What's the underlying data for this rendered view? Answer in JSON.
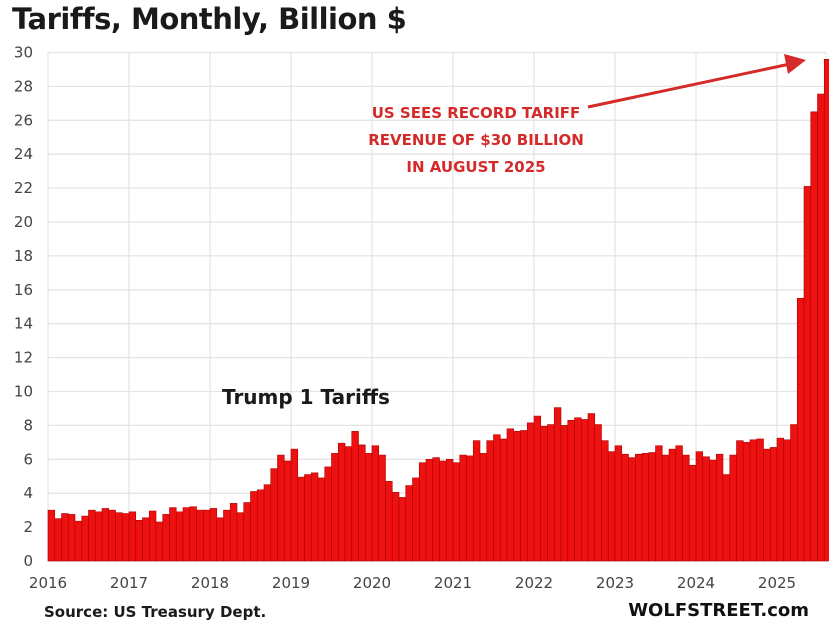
{
  "chart_data": {
    "type": "bar",
    "title": "Tariffs, Monthly, Billion $",
    "xlabel": "",
    "ylabel": "",
    "ylim": [
      0,
      30
    ],
    "yticks": [
      0,
      2,
      4,
      6,
      8,
      10,
      12,
      14,
      16,
      18,
      20,
      22,
      24,
      26,
      28,
      30
    ],
    "xticks": [
      "2016",
      "2017",
      "2018",
      "2019",
      "2020",
      "2021",
      "2022",
      "2023",
      "2024",
      "2025"
    ],
    "grid": true,
    "bar_color": "#ee1111",
    "start": "2016-01",
    "end": "2025-08",
    "frequency": "monthly",
    "series": [
      {
        "name": "Tariff revenue",
        "values": [
          3.0,
          2.5,
          2.8,
          2.75,
          2.35,
          2.65,
          3.0,
          2.9,
          3.1,
          3.0,
          2.85,
          2.8,
          2.9,
          2.4,
          2.55,
          2.95,
          2.3,
          2.75,
          3.15,
          2.9,
          3.15,
          3.2,
          3.0,
          3.0,
          3.1,
          2.55,
          3.0,
          3.4,
          2.85,
          3.45,
          4.1,
          4.2,
          4.5,
          5.45,
          6.25,
          5.9,
          6.6,
          4.95,
          5.1,
          5.2,
          4.9,
          5.55,
          6.35,
          6.95,
          6.75,
          7.65,
          6.85,
          6.35,
          6.8,
          6.25,
          4.7,
          4.05,
          3.75,
          4.45,
          4.9,
          5.8,
          6.0,
          6.1,
          5.9,
          6.0,
          5.8,
          6.25,
          6.2,
          7.1,
          6.35,
          7.1,
          7.45,
          7.2,
          7.8,
          7.65,
          7.7,
          8.15,
          8.55,
          7.95,
          8.05,
          9.05,
          8.0,
          8.3,
          8.45,
          8.35,
          8.7,
          8.05,
          7.1,
          6.45,
          6.8,
          6.3,
          6.1,
          6.3,
          6.35,
          6.4,
          6.8,
          6.25,
          6.6,
          6.8,
          6.25,
          5.65,
          6.45,
          6.15,
          5.95,
          6.3,
          5.1,
          6.25,
          7.1,
          7.0,
          7.15,
          7.2,
          6.6,
          6.7,
          7.25,
          7.15,
          8.05,
          15.5,
          22.1,
          26.5,
          27.55,
          29.6
        ]
      }
    ],
    "annotations": [
      {
        "text_lines": [
          "US SEES RECORD TARIFF",
          "REVENUE OF $30 BILLION",
          "IN AUGUST 2025"
        ],
        "color": "#d42a2a",
        "points_to": "2025-08"
      },
      {
        "text": "Trump 1 Tariffs",
        "color": "#1a1a1a"
      }
    ],
    "source": "Source: US Treasury Dept.",
    "brand": "WOLFSTREET.com"
  }
}
